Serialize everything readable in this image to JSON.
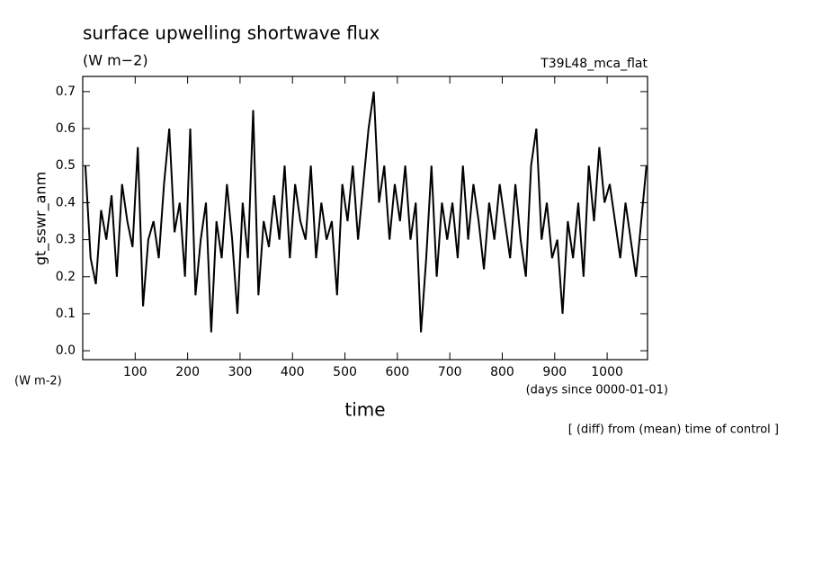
{
  "chart_data": {
    "type": "line",
    "title": "surface upwelling shortwave flux",
    "subtitle": "(W m−2)",
    "annotation": "T39L48_mca_flat",
    "ylabel": "gt_sswr_anm",
    "yunits": "(W m-2)",
    "xlabel": "time",
    "xunits": "(days since 0000-01-01)",
    "footnote": "[ (diff) from (mean) time of control ]",
    "color": "#000000",
    "x": [
      5,
      15,
      25,
      35,
      45,
      55,
      65,
      75,
      85,
      95,
      105,
      115,
      125,
      135,
      145,
      155,
      165,
      175,
      185,
      195,
      205,
      215,
      225,
      235,
      245,
      255,
      265,
      275,
      285,
      295,
      305,
      315,
      325,
      335,
      345,
      355,
      365,
      375,
      385,
      395,
      405,
      415,
      425,
      435,
      445,
      455,
      465,
      475,
      485,
      495,
      505,
      515,
      525,
      535,
      545,
      555,
      565,
      575,
      585,
      595,
      605,
      615,
      625,
      635,
      645,
      655,
      665,
      675,
      685,
      695,
      705,
      715,
      725,
      735,
      745,
      755,
      765,
      775,
      785,
      795,
      805,
      815,
      825,
      835,
      845,
      855,
      865,
      875,
      885,
      895,
      905,
      915,
      925,
      935,
      945,
      955,
      965,
      975,
      985,
      995,
      1005,
      1015,
      1025,
      1035,
      1045,
      1055,
      1065,
      1075
    ],
    "values": [
      0.5,
      0.25,
      0.18,
      0.38,
      0.3,
      0.42,
      0.2,
      0.45,
      0.35,
      0.28,
      0.55,
      0.12,
      0.3,
      0.35,
      0.25,
      0.45,
      0.6,
      0.32,
      0.4,
      0.2,
      0.6,
      0.15,
      0.3,
      0.4,
      0.05,
      0.35,
      0.25,
      0.45,
      0.3,
      0.1,
      0.4,
      0.25,
      0.65,
      0.15,
      0.35,
      0.28,
      0.42,
      0.3,
      0.5,
      0.25,
      0.45,
      0.35,
      0.3,
      0.5,
      0.25,
      0.4,
      0.3,
      0.35,
      0.15,
      0.45,
      0.35,
      0.5,
      0.3,
      0.45,
      0.6,
      0.7,
      0.4,
      0.5,
      0.3,
      0.45,
      0.35,
      0.5,
      0.3,
      0.4,
      0.05,
      0.25,
      0.5,
      0.2,
      0.4,
      0.3,
      0.4,
      0.25,
      0.5,
      0.3,
      0.45,
      0.35,
      0.22,
      0.4,
      0.3,
      0.45,
      0.35,
      0.25,
      0.45,
      0.3,
      0.2,
      0.5,
      0.6,
      0.3,
      0.4,
      0.25,
      0.3,
      0.1,
      0.35,
      0.25,
      0.4,
      0.2,
      0.5,
      0.35,
      0.55,
      0.4,
      0.45,
      0.35,
      0.25,
      0.4,
      0.3,
      0.2,
      0.35,
      0.5
    ],
    "xlim": [
      0,
      1077
    ],
    "ylim": [
      -0.024,
      0.741
    ],
    "xticks": [
      100,
      200,
      300,
      400,
      500,
      600,
      700,
      800,
      900,
      1000
    ],
    "yticks": [
      {
        "value": 0,
        "label": "0.0"
      },
      0.1,
      0.2,
      0.3,
      0.4,
      0.5,
      0.6,
      0.7
    ]
  }
}
